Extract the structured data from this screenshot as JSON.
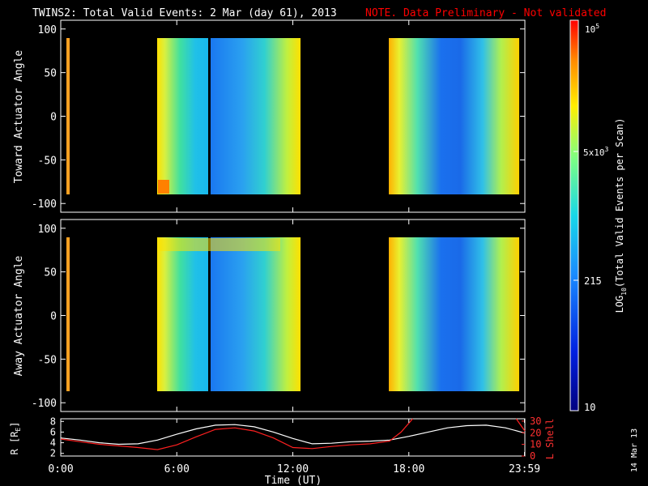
{
  "header": {
    "title": "TWINS2: Total Valid Events:  2 Mar (day  61), 2013",
    "warning": "NOTE. Data Preliminary - Not validated",
    "warning_color": "#ff0000"
  },
  "side_date": "14 Mar 13",
  "colorbar": {
    "label_parts": [
      "LOG",
      "10",
      "(Total Valid Events per Scan)"
    ],
    "tick_labels": [
      "10",
      "215",
      "5x10",
      "3",
      "10",
      "5"
    ]
  },
  "chart_data": [
    {
      "type": "heatmap",
      "name": "toward",
      "ylabel": "Toward Actuator Angle",
      "ylim": [
        -110,
        110
      ],
      "yticks": [
        100,
        50,
        0,
        -50,
        -100
      ],
      "xlim": [
        0,
        24
      ],
      "data_blocks": [
        {
          "x": [
            0.0,
            0.15
          ],
          "y": [
            -90,
            90
          ],
          "level": "orange"
        },
        {
          "x": [
            4.75,
            7.6
          ],
          "y": [
            -90,
            90
          ],
          "level": "yellow-to-cyan gradient"
        },
        {
          "x": [
            7.75,
            12.4
          ],
          "y": [
            -90,
            90
          ],
          "level": "blue-to-yellow gradient"
        },
        {
          "x": [
            16.85,
            23.99
          ],
          "y": [
            -90,
            90
          ],
          "level": "yellow-blue-yellow gradient"
        }
      ]
    },
    {
      "type": "heatmap",
      "name": "away",
      "ylabel": "Away Actuator Angle",
      "ylim": [
        -110,
        110
      ],
      "yticks": [
        100,
        50,
        0,
        -50,
        -100
      ],
      "xlim": [
        0,
        24
      ],
      "data_blocks": [
        {
          "x": [
            0.0,
            0.15
          ],
          "y": [
            -90,
            90
          ],
          "level": "orange"
        },
        {
          "x": [
            4.75,
            7.6
          ],
          "y": [
            -90,
            90
          ],
          "level": "yellow-to-cyan gradient"
        },
        {
          "x": [
            7.75,
            12.4
          ],
          "y": [
            -90,
            90
          ],
          "level": "blue-to-yellow gradient"
        },
        {
          "x": [
            16.85,
            23.99
          ],
          "y": [
            -90,
            90
          ],
          "level": "yellow-blue-yellow gradient"
        }
      ]
    },
    {
      "type": "line",
      "name": "ephemeris",
      "xlabel": "Time (UT)",
      "ylabel": "R [R",
      "ylabel_sub": "E",
      "ylabel_close": "]",
      "right_label": "L Shell",
      "xlim": [
        0,
        24
      ],
      "xticks": [
        "0:00",
        "6:00",
        "12:00",
        "18:00",
        "23:59"
      ],
      "ylim": [
        1.5,
        8.5
      ],
      "yticks_left": [
        "8",
        "6",
        "4",
        "2"
      ],
      "yticks_right": [
        "30",
        "20",
        "10",
        "0"
      ],
      "series": [
        {
          "color": "#ffffff",
          "x": [
            0,
            1,
            2,
            3,
            4,
            5,
            6,
            7,
            8,
            9,
            10,
            11,
            12,
            13,
            14,
            15,
            16,
            17,
            18,
            19,
            20,
            21,
            22,
            23,
            24
          ],
          "y": [
            4.9,
            4.5,
            4.0,
            3.7,
            3.8,
            4.5,
            5.6,
            6.6,
            7.3,
            7.4,
            7.0,
            6.0,
            4.8,
            3.8,
            3.9,
            4.2,
            4.3,
            4.5,
            5.2,
            6.0,
            6.8,
            7.2,
            7.3,
            6.8,
            5.8
          ]
        },
        {
          "color": "#ff2020",
          "x": [
            0,
            1,
            2,
            3,
            4,
            5,
            6,
            7,
            8,
            9,
            10,
            11,
            12,
            13,
            14,
            15,
            16,
            17,
            17.6,
            18.2
          ],
          "y": [
            4.7,
            4.2,
            3.7,
            3.4,
            3.1,
            2.7,
            3.6,
            5.1,
            6.5,
            6.8,
            6.2,
            4.9,
            3.1,
            2.9,
            3.3,
            3.6,
            3.8,
            4.3,
            6.0,
            8.6
          ]
        },
        {
          "color": "#ff2020",
          "x": [
            23.55,
            24
          ],
          "y": [
            8.6,
            6.2
          ]
        }
      ]
    }
  ]
}
